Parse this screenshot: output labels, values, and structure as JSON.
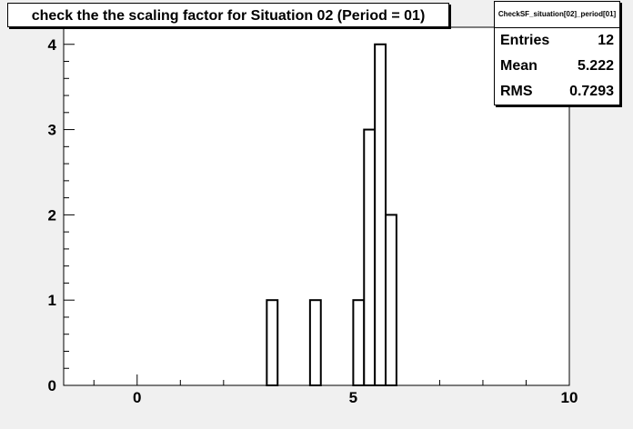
{
  "title": "check the the scaling factor for Situation 02 (Period = 01)",
  "stats": {
    "name": "CheckSF_situation[02]_period[01]",
    "rows": [
      {
        "label": "Entries",
        "value": "12"
      },
      {
        "label": "Mean",
        "value": "5.222"
      },
      {
        "label": "RMS",
        "value": "0.7293"
      }
    ]
  },
  "chart_data": {
    "type": "bar",
    "title": "check the the scaling factor for Situation 02 (Period = 01)",
    "xlim": [
      -1.7,
      10
    ],
    "ylim": [
      0,
      4.2
    ],
    "x_ticks": [
      "0",
      "5",
      "10"
    ],
    "y_ticks": [
      "0",
      "1",
      "2",
      "3",
      "4"
    ],
    "bin_edges": [
      3.0,
      3.25,
      4.0,
      4.25,
      5.0,
      5.25,
      5.5,
      5.75,
      6.0
    ],
    "bins": [
      {
        "x0": 3.0,
        "x1": 3.25,
        "count": 1
      },
      {
        "x0": 4.0,
        "x1": 4.25,
        "count": 1
      },
      {
        "x0": 5.0,
        "x1": 5.25,
        "count": 1
      },
      {
        "x0": 5.25,
        "x1": 5.5,
        "count": 3
      },
      {
        "x0": 5.5,
        "x1": 5.75,
        "count": 4
      },
      {
        "x0": 5.75,
        "x1": 6.0,
        "count": 2
      }
    ],
    "grid": false,
    "legend": "top-right"
  }
}
